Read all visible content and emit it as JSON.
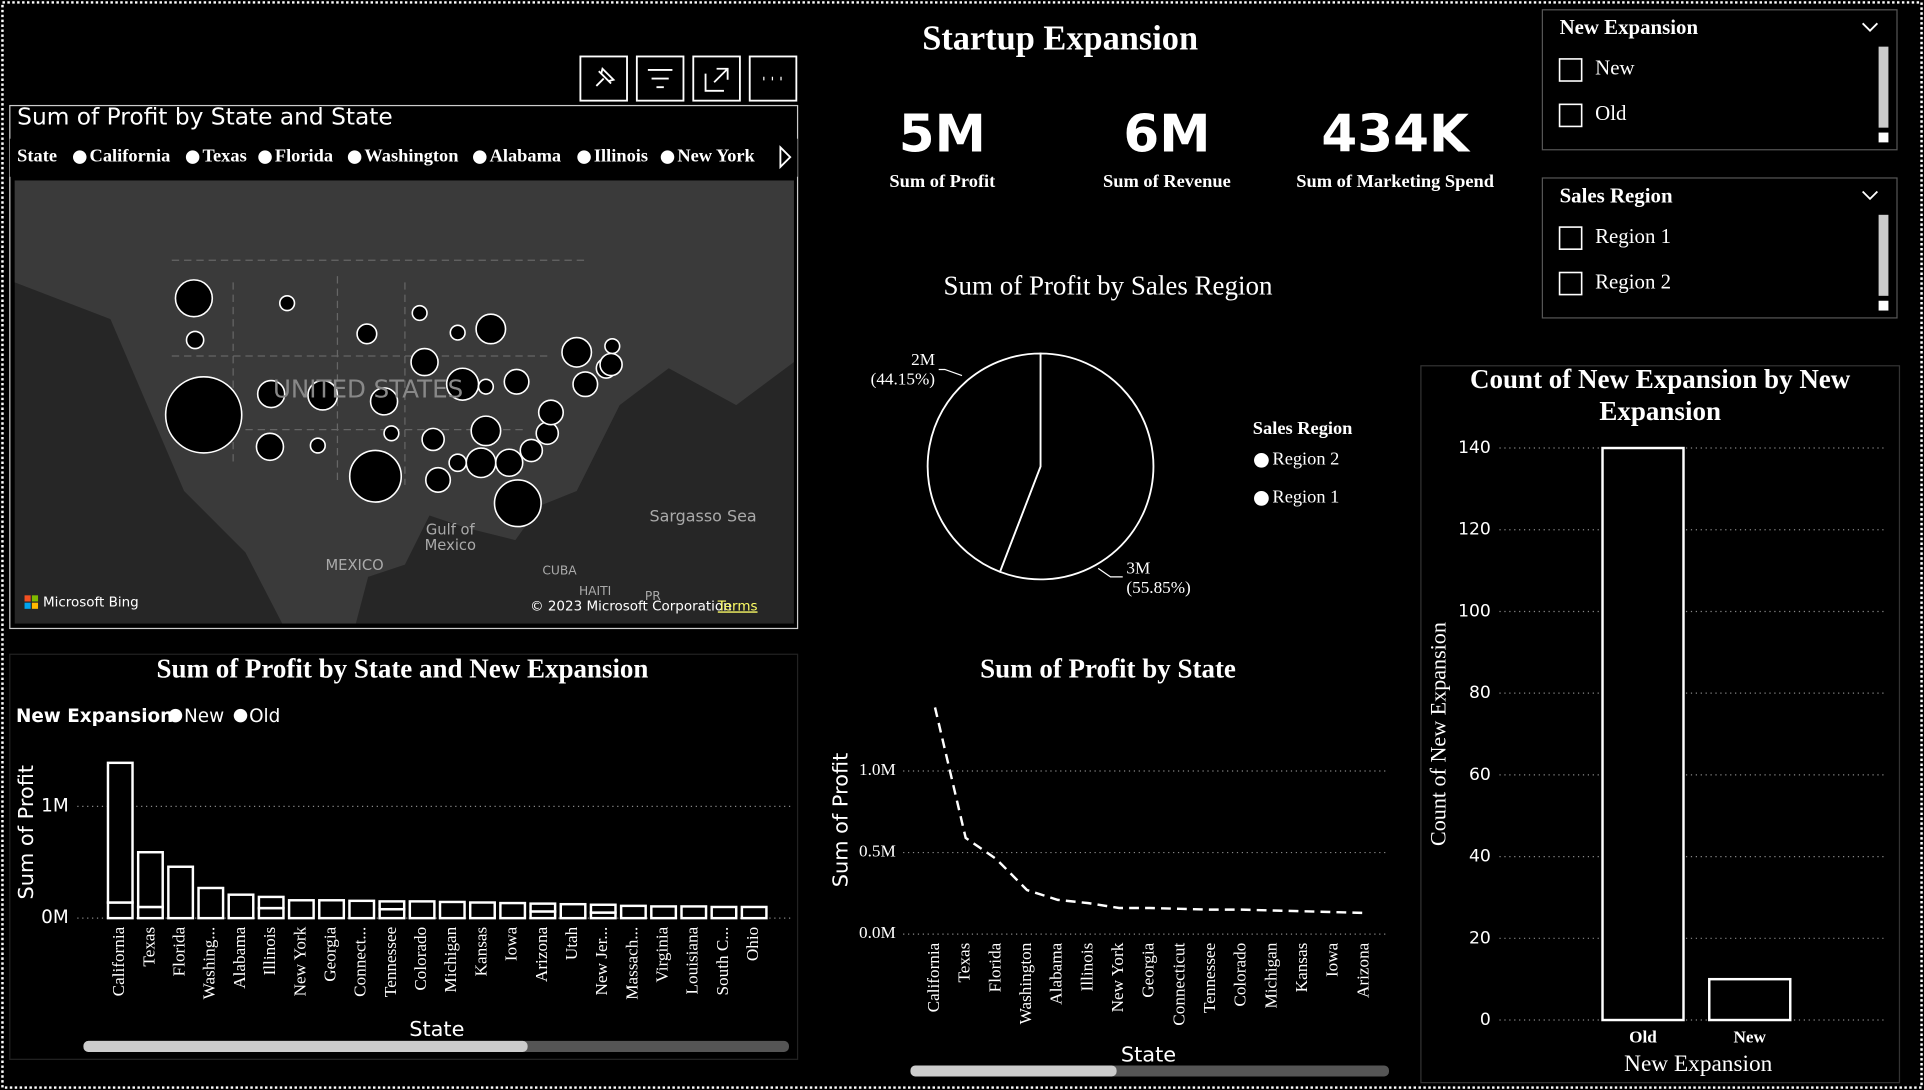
{
  "title": "Startup Expansion",
  "kpis": [
    {
      "value": "5M",
      "label": "Sum of Profit"
    },
    {
      "value": "6M",
      "label": "Sum of Revenue"
    },
    {
      "value": "434K",
      "label": "Sum of Marketing Spend"
    }
  ],
  "slicers": [
    {
      "title": "New Expansion",
      "items": [
        "New",
        "Old"
      ]
    },
    {
      "title": "Sales Region",
      "items": [
        "Region 1",
        "Region 2"
      ]
    }
  ],
  "map": {
    "title": "Sum of Profit by State and State",
    "legend_title": "State",
    "legend": [
      "California",
      "Texas",
      "Florida",
      "Washington",
      "Alabama",
      "Illinois",
      "New York"
    ],
    "places": [
      "UNITED STATES",
      "Sargasso Sea",
      "Gulf of",
      "Mexico",
      "MEXICO",
      "CUBA",
      "HAITI",
      "PR"
    ],
    "provider": "Microsoft Bing",
    "copyright": "© 2023 Microsoft Corporation",
    "terms": "Terms"
  },
  "chart_data": [
    {
      "type": "pie",
      "title": "Sum of Profit by Sales Region",
      "legend_title": "Sales Region",
      "categories": [
        "Region 2",
        "Region 1"
      ],
      "values": [
        2792500,
        2207500
      ],
      "value_labels": [
        "3M",
        "2M"
      ],
      "percent_labels": [
        "(55.85%)",
        "(44.15%)"
      ],
      "color": "#000000"
    },
    {
      "type": "stacked_bar",
      "title": "Sum of Profit by State and New Expansion",
      "legend_title": "New Expansion",
      "x_label": "State",
      "y_label": "Sum of Profit",
      "categories": [
        "California",
        "Texas",
        "Florida",
        "Washing...",
        "Alabama",
        "Illinois",
        "New York",
        "Georgia",
        "Connect...",
        "Tennessee",
        "Colorado",
        "Michigan",
        "Kansas",
        "Iowa",
        "Arizona",
        "Utah",
        "New Jer...",
        "Massach...",
        "Virginia",
        "Louisiana",
        "South C...",
        "Ohio"
      ],
      "series": [
        {
          "name": "New",
          "color": "#000000",
          "values": [
            140000,
            100000,
            null,
            null,
            null,
            90000,
            null,
            null,
            null,
            80000,
            null,
            null,
            null,
            null,
            60000,
            null,
            50000,
            null,
            null,
            null,
            null,
            null
          ]
        },
        {
          "name": "Old",
          "color": "#000000",
          "values": [
            1250000,
            490000,
            460000,
            270000,
            210000,
            100000,
            160000,
            160000,
            155000,
            70000,
            150000,
            145000,
            140000,
            135000,
            70000,
            125000,
            70000,
            110000,
            105000,
            105000,
            100000,
            100000
          ]
        }
      ],
      "ylim": [
        0,
        1450000
      ],
      "yticks": [
        {
          "value": 0,
          "label": "0M"
        },
        {
          "value": 1000000,
          "label": "1M"
        }
      ],
      "grid": true
    },
    {
      "type": "line",
      "title": "Sum of Profit by State",
      "x_label": "State",
      "y_label": "Sum of Profit",
      "categories": [
        "California",
        "Texas",
        "Florida",
        "Washington",
        "Alabama",
        "Illinois",
        "New York",
        "Georgia",
        "Connecticut",
        "Tennessee",
        "Colorado",
        "Michigan",
        "Kansas",
        "Iowa",
        "Arizona"
      ],
      "values": [
        1390000,
        590000,
        460000,
        270000,
        210000,
        190000,
        160000,
        160000,
        155000,
        150000,
        150000,
        145000,
        140000,
        135000,
        130000
      ],
      "color": "#ffffff",
      "line_style": "dashed",
      "ylim": [
        0,
        1400000
      ],
      "yticks": [
        {
          "value": 0,
          "label": "0.0M"
        },
        {
          "value": 500000,
          "label": "0.5M"
        },
        {
          "value": 1000000,
          "label": "1.0M"
        }
      ],
      "grid": true
    },
    {
      "type": "bar",
      "title": "Count of New Expansion by New Expansion",
      "x_label": "New Expansion",
      "y_label": "Count of New Expansion",
      "categories": [
        "Old",
        "New"
      ],
      "values": [
        140,
        10
      ],
      "color": "#000000",
      "ylim": [
        0,
        140
      ],
      "yticks": [
        0,
        20,
        40,
        60,
        80,
        100,
        120,
        140
      ],
      "grid": true
    }
  ]
}
